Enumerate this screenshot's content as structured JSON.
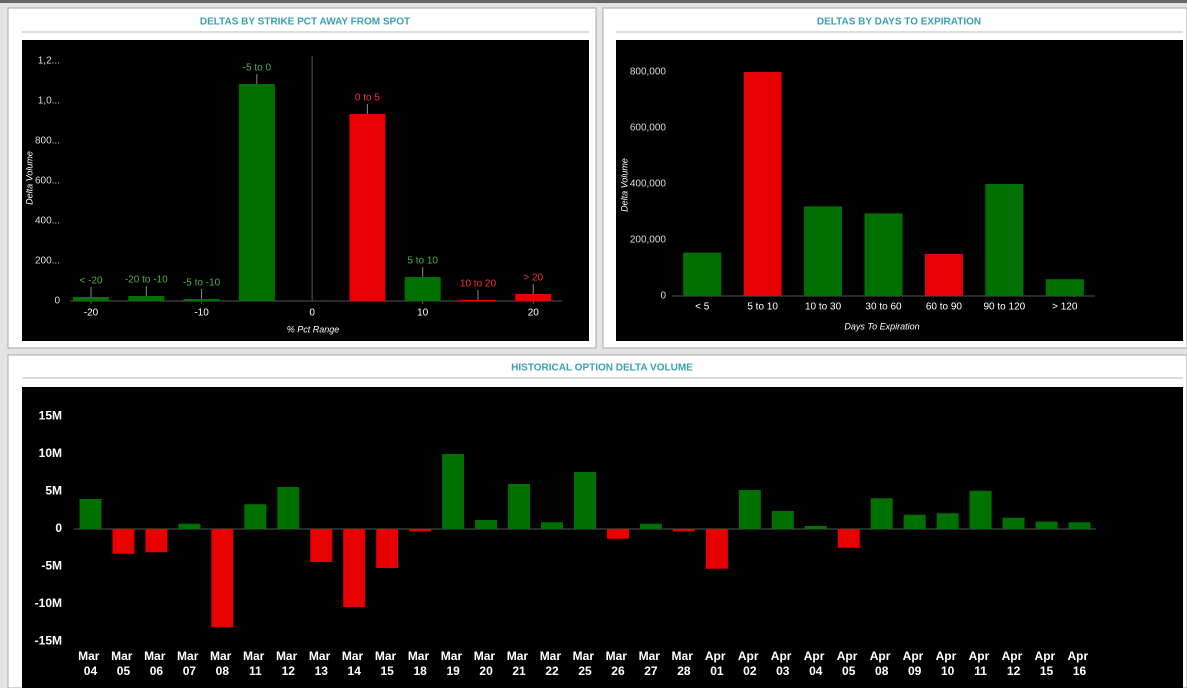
{
  "chart_data": [
    {
      "type": "bar",
      "title": "DELTAS BY STRIKE PCT AWAY FROM SPOT",
      "x_label": "% Pct Range",
      "y_label": "Delta Volume",
      "categories": [
        "< -20",
        "-20 to -10",
        "-5 to -10",
        "-5 to 0",
        "0 to 5",
        "5 to 10",
        "10 to 20",
        "> 20"
      ],
      "x": [
        -20,
        -15,
        -10,
        -5,
        5,
        10,
        15,
        20
      ],
      "values": [
        20000,
        25000,
        10000,
        1085000,
        935000,
        120000,
        5000,
        35000
      ],
      "colors": [
        "#007000",
        "#007000",
        "#007000",
        "#007000",
        "#e60000",
        "#007000",
        "#e60000",
        "#e60000"
      ],
      "xlim": [
        -21.9,
        22.6
      ],
      "xticks": [
        -20,
        -10,
        0,
        10,
        20
      ],
      "ylim": [
        0,
        1225000
      ],
      "yticks": [
        0,
        {
          "value": 200000,
          "label": "200..."
        },
        {
          "value": 400000,
          "label": "400..."
        },
        {
          "value": 600000,
          "label": "600..."
        },
        {
          "value": 800000,
          "label": "800..."
        },
        {
          "value": 1000000,
          "label": "1,0..."
        },
        {
          "value": 1200000,
          "label": "1,2..."
        }
      ]
    },
    {
      "type": "bar",
      "title": "DELTAS BY DAYS TO EXPIRATION",
      "x_label": "Days To Expiration",
      "y_label": "Delta Volume",
      "categories": [
        "< 5",
        "5 to 10",
        "10 to 30",
        "30 to 60",
        "60 to 90",
        "90 to 120",
        "> 120"
      ],
      "values": [
        155000,
        800000,
        320000,
        295000,
        150000,
        400000,
        60000
      ],
      "colors": [
        "#007000",
        "#e60000",
        "#007000",
        "#007000",
        "#e60000",
        "#007000",
        "#007000"
      ],
      "ylim": [
        0,
        900000
      ],
      "yticks": [
        0,
        {
          "value": 200000,
          "label": "200,000"
        },
        {
          "value": 400000,
          "label": "400,000"
        },
        {
          "value": 600000,
          "label": "600,000"
        },
        {
          "value": 800000,
          "label": "800,000"
        }
      ]
    },
    {
      "type": "bar",
      "title": "HISTORICAL OPTION DELTA VOLUME",
      "categories": [
        "Mar 04",
        "Mar 05",
        "Mar 06",
        "Mar 07",
        "Mar 08",
        "Mar 11",
        "Mar 12",
        "Mar 13",
        "Mar 14",
        "Mar 15",
        "Mar 18",
        "Mar 19",
        "Mar 20",
        "Mar 21",
        "Mar 22",
        "Mar 25",
        "Mar 26",
        "Mar 27",
        "Mar 28",
        "Apr 01",
        "Apr 02",
        "Apr 03",
        "Apr 04",
        "Apr 05",
        "Apr 08",
        "Apr 09",
        "Apr 10",
        "Apr 11",
        "Apr 12",
        "Apr 15",
        "Apr 16"
      ],
      "values": [
        4000000,
        -3300000,
        -3100000,
        700000,
        -13100000,
        3300000,
        5600000,
        -4400000,
        -10400000,
        -5200000,
        -300000,
        10000000,
        1200000,
        6000000,
        900000,
        7600000,
        -1300000,
        700000,
        -300000,
        -5300000,
        5200000,
        2400000,
        400000,
        -2500000,
        4100000,
        1900000,
        2100000,
        5100000,
        1500000,
        1000000,
        900000
      ],
      "positive_color": "#007000",
      "negative_color": "#e60000",
      "ylim": [
        -16000000,
        17000000
      ],
      "yticks": [
        {
          "value": -15000000,
          "label": "-15M"
        },
        {
          "value": -10000000,
          "label": "-10M"
        },
        {
          "value": -5000000,
          "label": "-5M"
        },
        0,
        {
          "value": 5000000,
          "label": "5M"
        },
        {
          "value": 10000000,
          "label": "10M"
        },
        {
          "value": 15000000,
          "label": "15M"
        }
      ]
    }
  ]
}
